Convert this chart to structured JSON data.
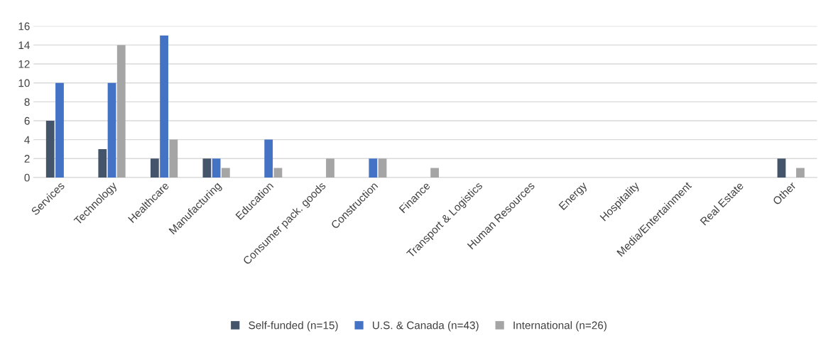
{
  "chart_data": {
    "type": "bar",
    "categories": [
      "Services",
      "Technology",
      "Healthcare",
      "Manufacturing",
      "Education",
      "Consumer pack. goods",
      "Construction",
      "Finance",
      "Transport & Logistics",
      "Human Resources",
      "Energy",
      "Hospitality",
      "Media/Entertainment",
      "Real Estate",
      "Other"
    ],
    "series": [
      {
        "name": "Self-funded (n=15)",
        "color": "#44546a",
        "values": [
          6,
          3,
          2,
          2,
          0,
          0,
          0,
          0,
          0,
          0,
          0,
          0,
          0,
          0,
          2
        ]
      },
      {
        "name": "U.S. & Canada (n=43)",
        "color": "#4472c4",
        "values": [
          10,
          10,
          15,
          2,
          4,
          0,
          2,
          0,
          0,
          0,
          0,
          0,
          0,
          0,
          0
        ]
      },
      {
        "name": "International (n=26)",
        "color": "#a5a5a5",
        "values": [
          0,
          14,
          4,
          1,
          1,
          2,
          2,
          1,
          0,
          0,
          0,
          0,
          0,
          0,
          1
        ]
      }
    ],
    "ylim": [
      0,
      16
    ],
    "yticks": [
      0,
      2,
      4,
      6,
      8,
      10,
      12,
      14,
      16
    ],
    "grid": "y",
    "legend": "bottom"
  }
}
